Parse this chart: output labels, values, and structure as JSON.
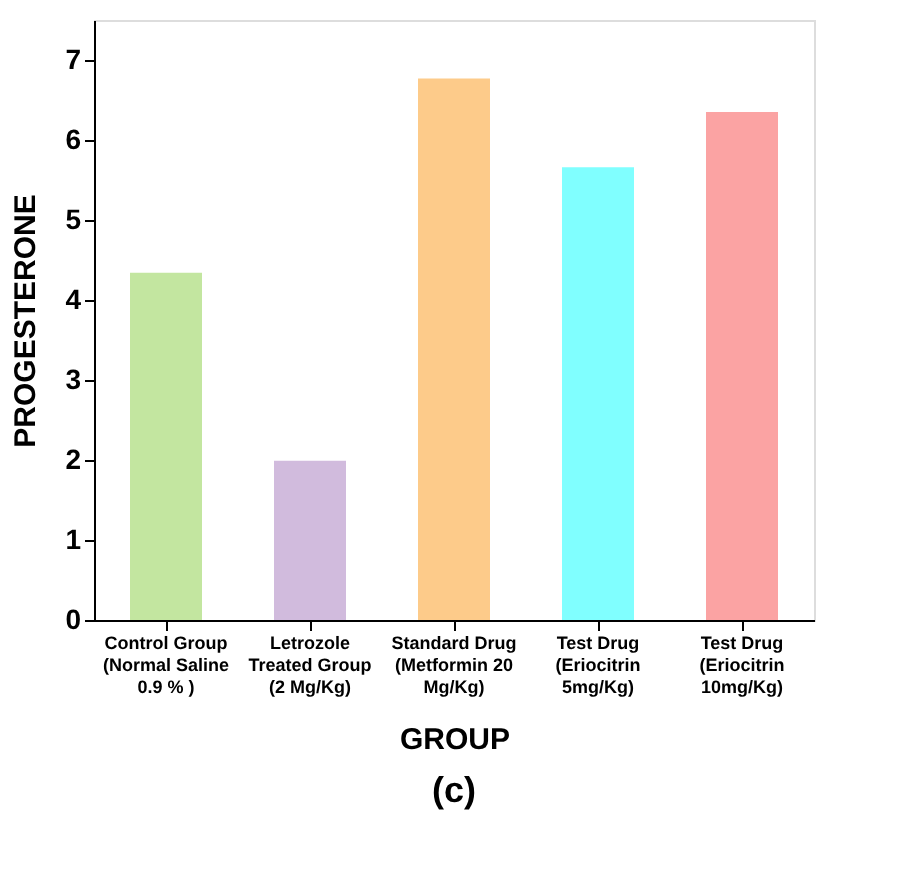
{
  "chart_data": {
    "type": "bar",
    "xlabel": "GROUP",
    "ylabel": "PROGESTERONE",
    "categories": [
      "Control Group\n(Normal Saline\n0.9 % )",
      "Letrozole\nTreated Group\n(2 Mg/Kg)",
      "Standard Drug\n(Metformin 20\nMg/Kg)",
      "Test Drug\n(Eriocitrin\n5mg/Kg)",
      "Test  Drug\n(Eriocitrin\n10mg/Kg)"
    ],
    "values": [
      4.34,
      1.99,
      6.77,
      5.66,
      6.35
    ],
    "colors": [
      "#c3e6a0",
      "#d1bbdd",
      "#fdcb8a",
      "#80ffff",
      "#fba3a3"
    ],
    "ylim": [
      0,
      7.5
    ],
    "yticks": [
      0,
      1,
      2,
      3,
      4,
      5,
      6,
      7
    ],
    "grid": false,
    "annotations": [
      "(c)"
    ]
  }
}
